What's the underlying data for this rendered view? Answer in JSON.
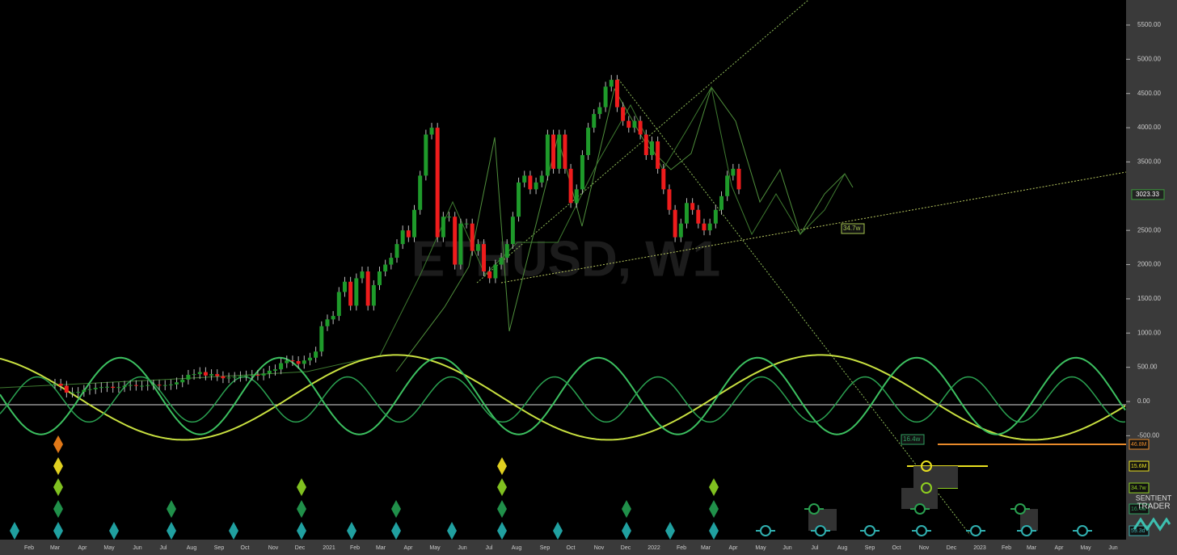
{
  "watermark": "ETHUSD, W1",
  "price_axis": {
    "ticks": [
      {
        "value": 5500,
        "label": "5500.00"
      },
      {
        "value": 5000,
        "label": "5000.00"
      },
      {
        "value": 4500,
        "label": "4500.00"
      },
      {
        "value": 4000,
        "label": "4000.00"
      },
      {
        "value": 3500,
        "label": "3500.00"
      },
      {
        "value": 2500,
        "label": "2500.00"
      },
      {
        "value": 2000,
        "label": "2000.00"
      },
      {
        "value": 1500,
        "label": "1500.00"
      },
      {
        "value": 1000,
        "label": "1000.00"
      },
      {
        "value": 500,
        "label": "500.00"
      },
      {
        "value": 0,
        "label": "0.00"
      },
      {
        "value": -500,
        "label": "-500.00"
      }
    ]
  },
  "last_price": {
    "value": 3023.33,
    "label": "3023.33"
  },
  "time_axis": [
    "Feb",
    "Mar",
    "Apr",
    "May",
    "Jun",
    "Jul",
    "Aug",
    "Sep",
    "Oct",
    "Nov",
    "Dec",
    "2021",
    "Feb",
    "Mar",
    "Apr",
    "May",
    "Jun",
    "Jul",
    "Aug",
    "Sep",
    "Oct",
    "Nov",
    "Dec",
    "2022",
    "Feb",
    "Mar",
    "Apr",
    "May",
    "Jun",
    "Jul",
    "Aug",
    "Sep",
    "Oct",
    "Nov",
    "Dec",
    "2023",
    "Feb",
    "Mar",
    "Apr",
    "May",
    "Jun"
  ],
  "cycle_labels": [
    "46.8M",
    "15.6M",
    "34.7w",
    "16.4w",
    "59.3d"
  ],
  "chart_labels": [
    "34.7w",
    "16.4w"
  ],
  "logo": {
    "line1": "SENTIENT",
    "line2": "TRADER"
  },
  "closes": [
    260,
    230,
    130,
    135,
    140,
    170,
    180,
    200,
    210,
    215,
    200,
    210,
    230,
    240,
    230,
    230,
    240,
    245,
    235,
    240,
    250,
    280,
    320,
    390,
    400,
    430,
    380,
    400,
    370,
    340,
    350,
    360,
    370,
    380,
    390,
    380,
    410,
    450,
    470,
    560,
    600,
    590,
    550,
    600,
    640,
    730,
    1100,
    1200,
    1250,
    1600,
    1750,
    1400,
    1800,
    1900,
    1400,
    1700,
    1900,
    2000,
    2100,
    2300,
    2500,
    2400,
    2800,
    3300,
    3900,
    4000,
    2400,
    2700,
    2700,
    2000,
    2600,
    2600,
    2200,
    2300,
    1900,
    1800,
    2000,
    2100,
    2300,
    2700,
    3200,
    3300,
    3100,
    3200,
    3300,
    3900,
    3400,
    3900,
    3400,
    2900,
    3100,
    3600,
    4000,
    4200,
    4300,
    4600,
    4700,
    4300,
    4100,
    4000,
    4100,
    3900,
    3600,
    3800,
    3400,
    3100,
    2800,
    2400,
    2600,
    2900,
    2800,
    2600,
    2500,
    2600,
    2800,
    3000,
    3300,
    3400,
    3100
  ]
}
